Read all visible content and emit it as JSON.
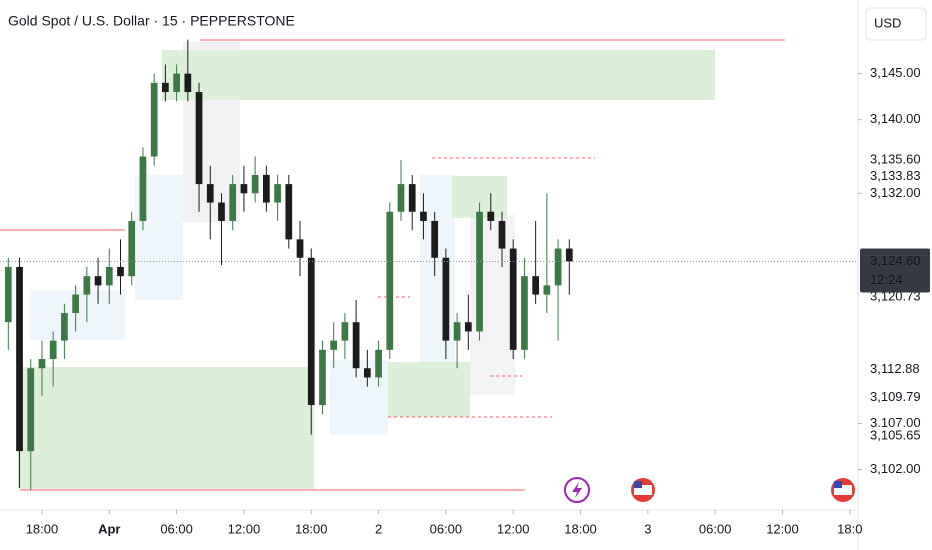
{
  "chart_data": {
    "type": "candlestick",
    "title": "Gold Spot / U.S. Dollar · 15 · PEPPERSTONE",
    "currency": "USD",
    "up_color": "#3b7a45",
    "down_color": "#1c1c1c",
    "x": [
      15,
      16,
      17,
      18,
      19,
      20,
      21,
      22,
      23,
      24,
      25,
      26,
      27,
      28,
      29,
      30,
      31,
      32,
      33,
      34,
      35,
      36,
      37,
      38,
      39,
      40,
      41,
      42,
      43,
      44,
      45,
      46,
      47,
      48,
      49,
      50,
      51,
      52,
      53,
      54,
      55,
      56,
      57,
      58,
      59,
      60,
      61,
      62,
      63,
      64,
      65
    ],
    "open": [
      3118,
      3124,
      3104,
      3113,
      3114,
      3116,
      3119,
      3121,
      3123,
      3122,
      3124,
      3123,
      3129,
      3136,
      3144,
      3143,
      3145,
      3143,
      3133,
      3131,
      3129,
      3133,
      3132,
      3134,
      3131,
      3133,
      3127,
      3125,
      3109,
      3115,
      3116,
      3118,
      3113,
      3112,
      3115,
      3130,
      3133,
      3130,
      3129,
      3125,
      3116,
      3118,
      3117,
      3130,
      3129,
      3126,
      3115,
      3123,
      3121,
      3122,
      3126
    ],
    "high": [
      3125,
      3125,
      3114,
      3116,
      3117,
      3120,
      3122,
      3124,
      3125,
      3126,
      3127,
      3130,
      3137,
      3145,
      3146,
      3146,
      3148.7,
      3144,
      3135,
      3132,
      3134,
      3135,
      3136,
      3135,
      3134,
      3134,
      3129,
      3126,
      3116,
      3118,
      3119,
      3120.4,
      3115,
      3116,
      3131,
      3135.6,
      3134,
      3132,
      3130,
      3126,
      3119,
      3121,
      3131,
      3132,
      3130,
      3127,
      3125,
      3129,
      3132,
      3127,
      3127
    ],
    "low": [
      3115,
      3100,
      3099.8,
      3110,
      3111,
      3114,
      3117,
      3118,
      3120,
      3120,
      3121,
      3122,
      3128,
      3135,
      3142,
      3142,
      3142,
      3130,
      3127,
      3124.2,
      3128,
      3130,
      3131,
      3130,
      3129,
      3126,
      3123,
      3105.8,
      3108,
      3113,
      3114,
      3112,
      3111,
      3111,
      3114,
      3129,
      3128,
      3127,
      3123,
      3114,
      3113,
      3115,
      3116,
      3128,
      3124,
      3114,
      3114,
      3120,
      3119,
      3116,
      3121
    ],
    "close": [
      3124,
      3104,
      3113,
      3114,
      3116,
      3119,
      3121,
      3123,
      3122,
      3124,
      3123,
      3129,
      3136,
      3144,
      3143,
      3145,
      3143,
      3133,
      3131,
      3129,
      3133,
      3132,
      3134,
      3131,
      3133,
      3127,
      3125,
      3109,
      3115,
      3116,
      3118,
      3113,
      3112,
      3115,
      3130,
      3133,
      3130,
      3129,
      3125,
      3116,
      3118,
      3117,
      3130,
      3129,
      3126,
      3115,
      3123,
      3121,
      3122,
      3126,
      3124.6
    ],
    "xlim": [
      14.26,
      90.73
    ],
    "xticks": [
      {
        "value": 18,
        "label": "18:00"
      },
      {
        "value": 24,
        "label": "Apr"
      },
      {
        "value": 30,
        "label": "06:00"
      },
      {
        "value": 36,
        "label": "12:00"
      },
      {
        "value": 42,
        "label": "18:00"
      },
      {
        "value": 48,
        "label": "2"
      },
      {
        "value": 54,
        "label": "06:00"
      },
      {
        "value": 60,
        "label": "12:00"
      },
      {
        "value": 66,
        "label": "18:00"
      },
      {
        "value": 72,
        "label": "3"
      },
      {
        "value": 78,
        "label": "06:00"
      },
      {
        "value": 84,
        "label": "12:00"
      },
      {
        "value": 90,
        "label": "18:0"
      }
    ],
    "ylim": [
      3097.6,
      3153.0
    ],
    "yticks": [
      {
        "value": 3102,
        "label": "3,102.00"
      },
      {
        "value": 3107,
        "label": "3,107.00"
      },
      {
        "value": 3132,
        "label": "3,132.00"
      },
      {
        "value": 3140,
        "label": "3,140.00"
      },
      {
        "value": 3145,
        "label": "3,145.00"
      }
    ],
    "price_labels": [
      {
        "value": 3135.6,
        "label": "3,135.60"
      },
      {
        "value": 3133.83,
        "label": "3,133.83"
      },
      {
        "value": 3120.73,
        "label": "3,120.73"
      },
      {
        "value": 3112.88,
        "label": "3,112.88"
      },
      {
        "value": 3109.79,
        "label": "3,109.79"
      },
      {
        "value": 3105.65,
        "label": "3,105.65"
      }
    ],
    "current_price": {
      "value": 3124.6,
      "label": "3,124.60",
      "countdown": "12:24"
    }
  }
}
